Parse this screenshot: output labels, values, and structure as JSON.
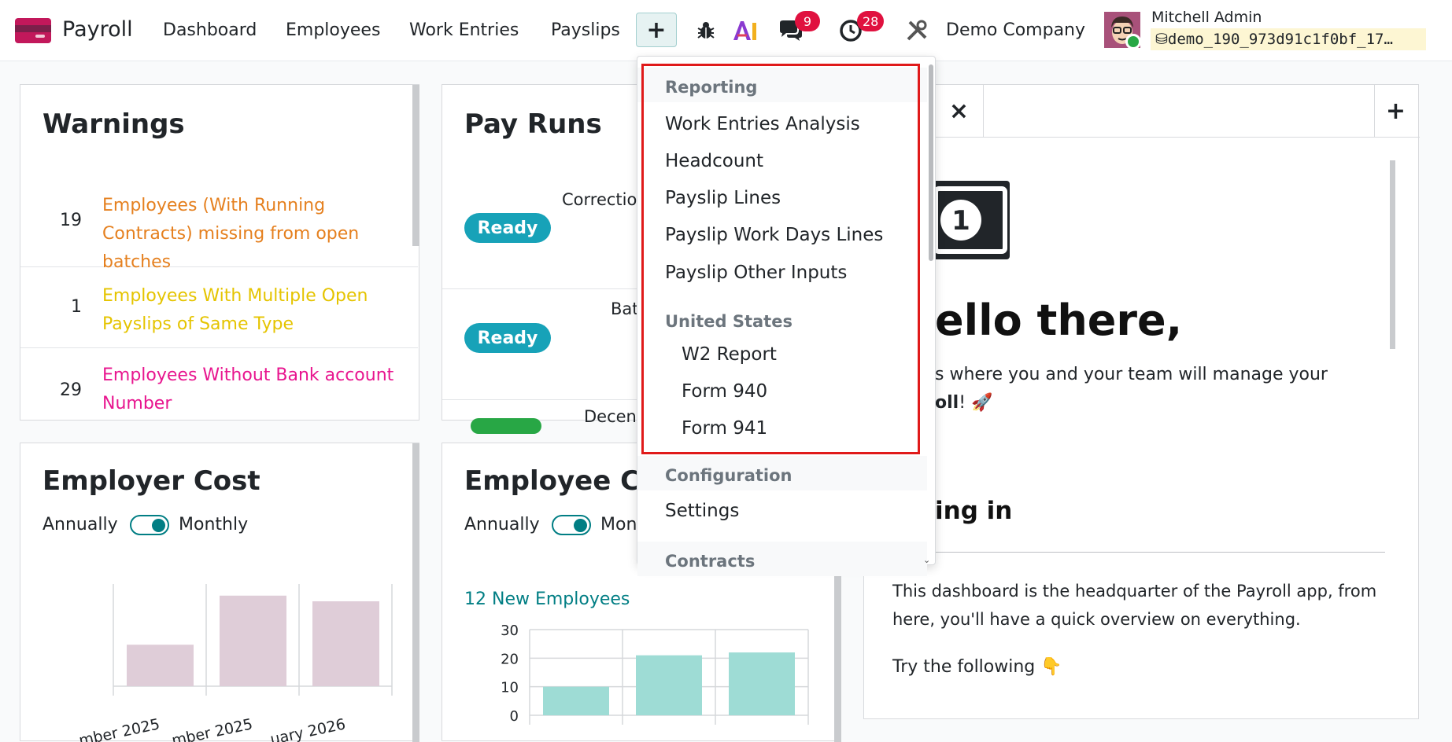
{
  "navbar": {
    "app_name": "Payroll",
    "menu": [
      "Dashboard",
      "Employees",
      "Work Entries",
      "Payslips"
    ],
    "plus_label": "+",
    "messages_badge": "9",
    "activity_badge": "28",
    "company": "Demo Company",
    "user_name": "Mitchell Admin",
    "db_name": "demo_190_973d91c1f0bf_17…"
  },
  "warnings": {
    "title": "Warnings",
    "rows": [
      {
        "count": "19",
        "label": "Employees (With Running Contracts) missing from open batches",
        "color": "#e5801f"
      },
      {
        "count": "1",
        "label": "Employees With Multiple Open Payslips of Same Type",
        "color": "#e5c400"
      },
      {
        "count": "29",
        "label": "Employees Without Bank account Number",
        "color": "#e8168f"
      }
    ]
  },
  "pay_runs": {
    "title": "Pay Runs",
    "runs": [
      {
        "status": "Ready",
        "name": "Correctio"
      },
      {
        "status": "Ready",
        "name": "Bat"
      },
      {
        "status": "",
        "name": "Decen"
      }
    ]
  },
  "employer_cost": {
    "title": "Employer Cost",
    "toggle_left": "Annually",
    "toggle_right": "Monthly"
  },
  "employee_count": {
    "title": "Employee Co",
    "toggle_left": "Annually",
    "toggle_right": "Mon",
    "new_employees": "12 New Employees"
  },
  "chart_data": [
    {
      "type": "bar",
      "categories": [
        "mber 2025",
        "mber 2025",
        "uary 2026"
      ],
      "values": [
        44,
        96,
        90
      ],
      "color": "#dfcdd8"
    },
    {
      "type": "bar",
      "categories": [
        "",
        "",
        ""
      ],
      "values": [
        10,
        21,
        22
      ],
      "ylim": [
        0,
        30
      ],
      "yticks": [
        "0",
        "10",
        "20",
        "30"
      ],
      "color": "#9edcd5"
    }
  ],
  "dropdown": {
    "sections": [
      {
        "header": "Reporting",
        "items": [
          "Work Entries Analysis",
          "Headcount",
          "Payslip Lines",
          "Payslip Work Days Lines",
          "Payslip Other Inputs"
        ]
      },
      {
        "header": "United States",
        "items": [
          "W2 Report",
          "Form 940",
          "Form 941"
        ],
        "sub": true
      },
      {
        "header": "Configuration",
        "items": [
          "Settings"
        ]
      },
      {
        "header": "Contracts",
        "items": []
      }
    ]
  },
  "welcome": {
    "close_label": "×",
    "plus_label": "+",
    "hello": "ello there,",
    "intro_line1": "s where you and your team will manage your",
    "intro_line2": "oll",
    "intro_line2_tail": "! 🚀",
    "section": "ing in",
    "body": "This dashboard is the headquarter of the Payroll app, from here, you'll have a quick overview on everything.",
    "try": "Try the following 👇"
  }
}
